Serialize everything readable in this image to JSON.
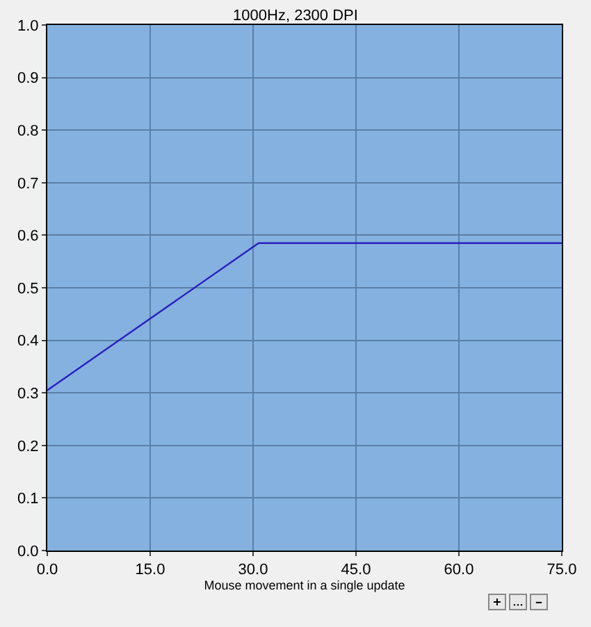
{
  "chart_data": {
    "type": "line",
    "title": "1000Hz, 2300 DPI",
    "xlabel": "Mouse movement in a single update",
    "x": [
      0,
      30.8,
      75
    ],
    "series": [
      {
        "color": "#2a1fbf",
        "values": [
          0.305,
          0.585,
          0.585
        ]
      }
    ],
    "xlim": [
      0,
      75
    ],
    "xticks": [
      {
        "value": 0,
        "label": "0.0"
      },
      {
        "value": 15,
        "label": "15.0"
      },
      {
        "value": 30,
        "label": "30.0"
      },
      {
        "value": 45,
        "label": "45.0"
      },
      {
        "value": 60,
        "label": "60.0"
      },
      {
        "value": 75,
        "label": "75.0"
      }
    ],
    "ylim": [
      0,
      1
    ],
    "yticks": [
      {
        "value": 0,
        "label": "0.0"
      },
      {
        "value": 0.1,
        "label": "0.1"
      },
      {
        "value": 0.2,
        "label": "0.2"
      },
      {
        "value": 0.3,
        "label": "0.3"
      },
      {
        "value": 0.4,
        "label": "0.4"
      },
      {
        "value": 0.5,
        "label": "0.5"
      },
      {
        "value": 0.6,
        "label": "0.6"
      },
      {
        "value": 0.7,
        "label": "0.7"
      },
      {
        "value": 0.8,
        "label": "0.8"
      },
      {
        "value": 0.9,
        "label": "0.9"
      },
      {
        "value": 1,
        "label": "1.0"
      }
    ],
    "grid": true
  }
}
